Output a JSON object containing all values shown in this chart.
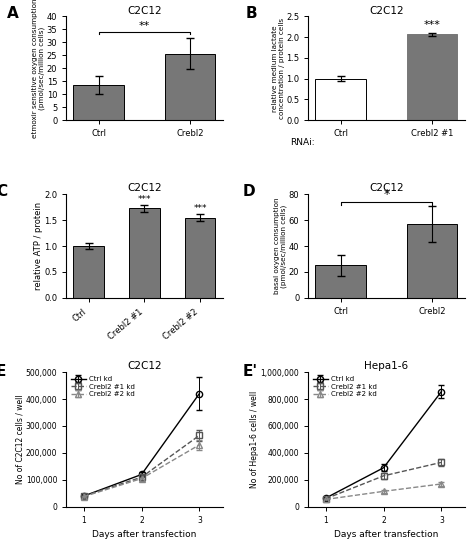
{
  "panel_A": {
    "title": "C2C12",
    "categories": [
      "Ctrl",
      "Crebl2"
    ],
    "values": [
      13.5,
      25.5
    ],
    "errors": [
      3.5,
      6.0
    ],
    "colors": [
      "#777777",
      "#777777"
    ],
    "ylabel": "etmoxir sensitive oxygen consumption\n(pmol/sec/million cells)",
    "ylim": [
      0,
      40
    ],
    "yticks": [
      0,
      5,
      10,
      15,
      20,
      25,
      30,
      35,
      40
    ],
    "sig_label": "**",
    "bar_width": 0.55
  },
  "panel_B": {
    "title": "C2C12",
    "categories": [
      "Ctrl",
      "Crebl2 #1"
    ],
    "values": [
      1.0,
      2.07
    ],
    "errors": [
      0.07,
      0.04
    ],
    "colors": [
      "#ffffff",
      "#777777"
    ],
    "bar_edge_colors": [
      "#000000",
      "#777777"
    ],
    "ylabel": "relative medium lactate\nconcentration / protein cells",
    "xlabel": "RNAi:",
    "ylim": [
      0,
      2.5
    ],
    "yticks": [
      0,
      0.5,
      1.0,
      1.5,
      2.0,
      2.5
    ],
    "sig_label": "***",
    "bar_width": 0.55
  },
  "panel_C": {
    "title": "C2C12",
    "categories": [
      "Ctrl",
      "Crebl2 #1",
      "Crebl2 #2"
    ],
    "values": [
      1.0,
      1.73,
      1.55
    ],
    "errors": [
      0.05,
      0.07,
      0.06
    ],
    "colors": [
      "#777777",
      "#777777",
      "#777777"
    ],
    "ylabel": "relative ATP / protein",
    "ylim": [
      0,
      2.0
    ],
    "yticks": [
      0,
      0.5,
      1.0,
      1.5,
      2.0
    ],
    "sig_labels": [
      "",
      "***",
      "***"
    ],
    "bar_width": 0.55
  },
  "panel_D": {
    "title": "C2C12",
    "categories": [
      "Ctrl",
      "Crebl2"
    ],
    "values": [
      25.0,
      57.0
    ],
    "errors": [
      8.0,
      14.0
    ],
    "colors": [
      "#777777",
      "#777777"
    ],
    "ylabel": "basal oxygen consumption\n(pmol/sec/million cells)",
    "ylim": [
      0,
      80
    ],
    "yticks": [
      0,
      20,
      40,
      60,
      80
    ],
    "sig_label": "*",
    "bar_width": 0.55
  },
  "panel_E": {
    "title": "C2C12",
    "xlabel": "Days after transfection",
    "ylabel": "No of C2C12 cells / well",
    "x": [
      1,
      2,
      3
    ],
    "series": [
      {
        "label": "Ctrl kd",
        "values": [
          40000,
          120000,
          420000
        ],
        "errors": [
          4000,
          10000,
          60000
        ],
        "linestyle": "-",
        "marker": "o",
        "color": "#000000",
        "filled": false
      },
      {
        "label": "Crebl2 #1 kd",
        "values": [
          40000,
          110000,
          265000
        ],
        "errors": [
          4000,
          9000,
          20000
        ],
        "linestyle": "--",
        "marker": "s",
        "color": "#555555",
        "filled": false
      },
      {
        "label": "Crebl2 #2 kd",
        "values": [
          38000,
          105000,
          230000
        ],
        "errors": [
          4000,
          9000,
          18000
        ],
        "linestyle": "--",
        "marker": "^",
        "color": "#888888",
        "filled": false
      }
    ],
    "ylim": [
      0,
      500000
    ],
    "yticks": [
      0,
      100000,
      200000,
      300000,
      400000,
      500000
    ]
  },
  "panel_Ep": {
    "title": "Hepa1-6",
    "xlabel": "Days after transfection",
    "ylabel": "No of Hepa1-6 cells / well",
    "x": [
      1,
      2,
      3
    ],
    "series": [
      {
        "label": "Ctrl kd",
        "values": [
          65000,
          290000,
          855000
        ],
        "errors": [
          6000,
          25000,
          50000
        ],
        "linestyle": "-",
        "marker": "o",
        "color": "#000000",
        "filled": false
      },
      {
        "label": "Crebl2 #1 kd",
        "values": [
          60000,
          230000,
          330000
        ],
        "errors": [
          5000,
          20000,
          25000
        ],
        "linestyle": "--",
        "marker": "s",
        "color": "#555555",
        "filled": false
      },
      {
        "label": "Crebl2 #2 kd",
        "values": [
          55000,
          115000,
          170000
        ],
        "errors": [
          5000,
          10000,
          15000
        ],
        "linestyle": "--",
        "marker": "^",
        "color": "#888888",
        "filled": false
      }
    ],
    "ylim": [
      0,
      1000000
    ],
    "yticks": [
      0,
      200000,
      400000,
      600000,
      800000,
      1000000
    ]
  }
}
